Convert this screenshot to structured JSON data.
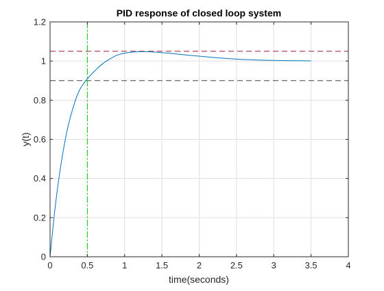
{
  "chart_data": {
    "type": "line",
    "title": "PID response of closed loop system",
    "xlabel": "time(seconds)",
    "ylabel": "y(t)",
    "xlim": [
      0,
      4
    ],
    "ylim": [
      0,
      1.2
    ],
    "xticks": [
      0,
      0.5,
      1,
      1.5,
      2,
      2.5,
      3,
      3.5,
      4
    ],
    "yticks": [
      0,
      0.2,
      0.4,
      0.6,
      0.8,
      1,
      1.2
    ],
    "xtick_labels": [
      "0",
      "0.5",
      "1",
      "1.5",
      "2",
      "2.5",
      "3",
      "3.5",
      "4"
    ],
    "ytick_labels": [
      "0",
      "0.2",
      "0.4",
      "0.6",
      "0.8",
      "1",
      "1.2"
    ],
    "grid": true,
    "series": [
      {
        "color": "#0072BD",
        "style": "solid",
        "x": [
          0,
          0.05,
          0.1,
          0.15,
          0.2,
          0.25,
          0.3,
          0.35,
          0.4,
          0.45,
          0.5,
          0.6,
          0.7,
          0.8,
          0.9,
          1.0,
          1.1,
          1.2,
          1.3,
          1.4,
          1.5,
          1.6,
          1.8,
          2.0,
          2.2,
          2.4,
          2.6,
          2.8,
          3.0,
          3.2,
          3.5
        ],
        "y": [
          0,
          0.19,
          0.35,
          0.48,
          0.59,
          0.68,
          0.75,
          0.81,
          0.855,
          0.885,
          0.91,
          0.95,
          0.985,
          1.01,
          1.03,
          1.04,
          1.046,
          1.048,
          1.048,
          1.046,
          1.043,
          1.04,
          1.032,
          1.025,
          1.018,
          1.012,
          1.008,
          1.005,
          1.003,
          1.002,
          1.001
        ]
      }
    ],
    "reference_lines": [
      {
        "orientation": "horizontal",
        "value": 1.05,
        "color": "#A2142F",
        "style": "dashed"
      },
      {
        "orientation": "horizontal",
        "value": 0.9,
        "color": "#404040",
        "style": "dashed"
      },
      {
        "orientation": "vertical",
        "value": 0,
        "color": "#00C800",
        "style": "dashdot"
      },
      {
        "orientation": "vertical",
        "value": 0.5,
        "color": "#00C800",
        "style": "dashdot"
      }
    ]
  }
}
